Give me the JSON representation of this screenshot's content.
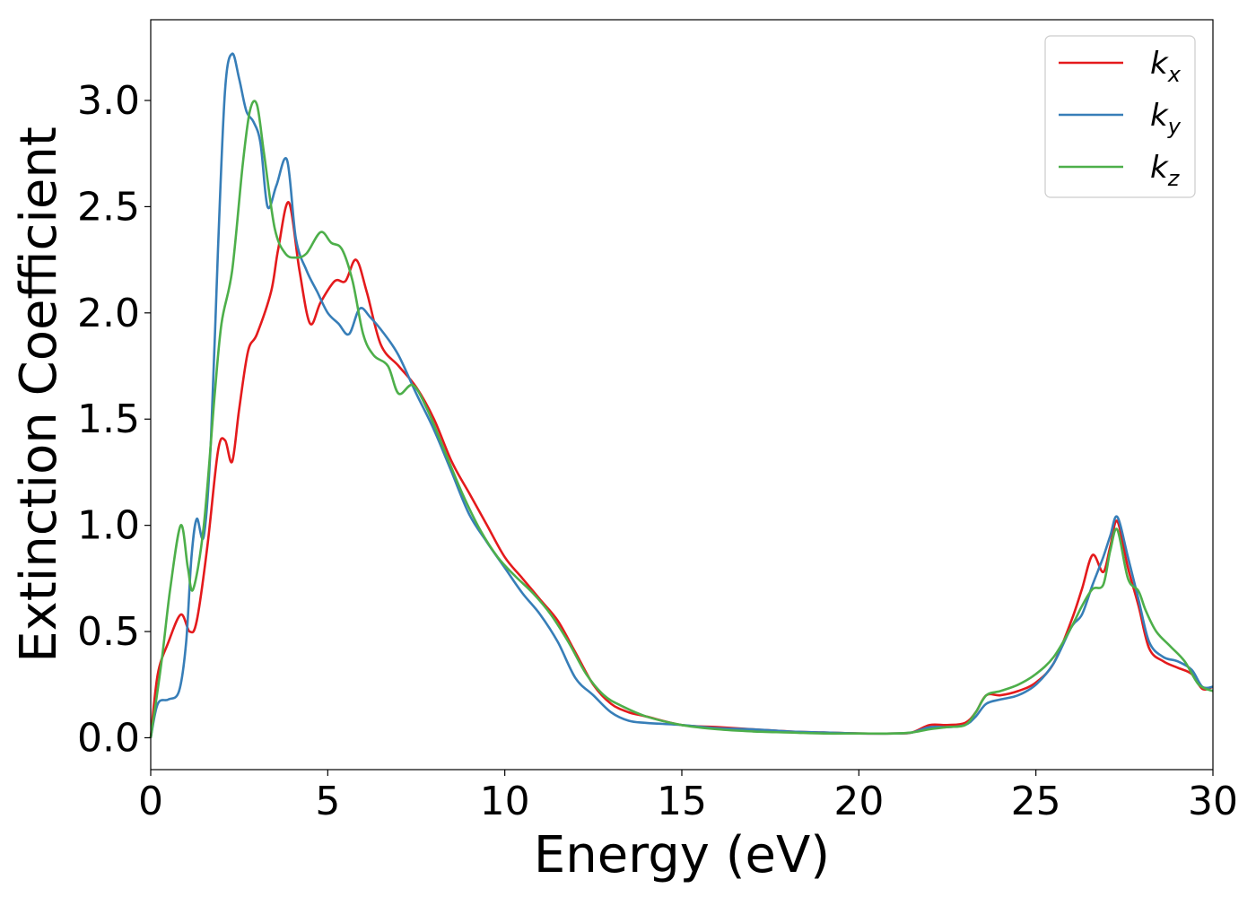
{
  "chart_data": {
    "type": "line",
    "title": "",
    "xlabel": "Energy (eV)",
    "ylabel": "Extinction Coefficient",
    "xlim": [
      0,
      30
    ],
    "ylim": [
      -0.15,
      3.38
    ],
    "xticks": [
      0,
      5,
      10,
      15,
      20,
      25,
      30
    ],
    "xtick_labels": [
      "0",
      "5",
      "10",
      "15",
      "20",
      "25",
      "30"
    ],
    "yticks": [
      0.0,
      0.5,
      1.0,
      1.5,
      2.0,
      2.5,
      3.0
    ],
    "ytick_labels": [
      "0.0",
      "0.5",
      "1.0",
      "1.5",
      "2.0",
      "2.5",
      "3.0"
    ],
    "grid": false,
    "legend_position": "top-right",
    "series": [
      {
        "name": "k_x",
        "label_base": "k",
        "label_sub": "x",
        "color": "#e41a1c",
        "x": [
          0,
          0.2,
          0.5,
          0.85,
          1.1,
          1.3,
          1.6,
          1.9,
          2.1,
          2.3,
          2.5,
          2.75,
          3.0,
          3.4,
          3.6,
          3.9,
          4.2,
          4.5,
          4.8,
          5.2,
          5.5,
          5.8,
          6.1,
          6.5,
          7.0,
          7.5,
          8.0,
          8.5,
          9.0,
          9.5,
          10.0,
          10.5,
          11.0,
          11.5,
          12.0,
          12.5,
          13.0,
          13.5,
          14.0,
          15.0,
          16.0,
          17.0,
          18.0,
          19.0,
          20.0,
          21.0,
          21.5,
          22.0,
          22.5,
          23.0,
          23.3,
          23.6,
          24.0,
          24.5,
          25.0,
          25.5,
          26.0,
          26.3,
          26.6,
          26.9,
          27.1,
          27.3,
          27.6,
          27.9,
          28.2,
          28.6,
          29.0,
          29.4,
          29.7,
          30.0
        ],
        "y": [
          0.0,
          0.3,
          0.45,
          0.58,
          0.5,
          0.55,
          0.9,
          1.35,
          1.4,
          1.3,
          1.55,
          1.82,
          1.9,
          2.1,
          2.3,
          2.52,
          2.2,
          1.95,
          2.05,
          2.15,
          2.15,
          2.25,
          2.1,
          1.85,
          1.75,
          1.65,
          1.5,
          1.3,
          1.15,
          1.0,
          0.85,
          0.75,
          0.65,
          0.55,
          0.4,
          0.25,
          0.16,
          0.12,
          0.1,
          0.06,
          0.05,
          0.04,
          0.03,
          0.025,
          0.02,
          0.02,
          0.025,
          0.06,
          0.06,
          0.07,
          0.12,
          0.2,
          0.2,
          0.22,
          0.26,
          0.35,
          0.55,
          0.7,
          0.86,
          0.78,
          0.9,
          1.02,
          0.8,
          0.62,
          0.42,
          0.36,
          0.33,
          0.3,
          0.23,
          0.24
        ]
      },
      {
        "name": "k_y",
        "label_base": "k",
        "label_sub": "y",
        "color": "#377eb8",
        "x": [
          0,
          0.2,
          0.5,
          0.8,
          1.0,
          1.15,
          1.3,
          1.5,
          1.7,
          1.9,
          2.1,
          2.3,
          2.5,
          2.7,
          2.9,
          3.1,
          3.3,
          3.55,
          3.85,
          4.1,
          4.4,
          4.7,
          5.0,
          5.3,
          5.6,
          5.9,
          6.2,
          6.6,
          7.0,
          7.5,
          8.0,
          8.5,
          9.0,
          9.5,
          10.0,
          10.5,
          11.0,
          11.5,
          12.0,
          12.5,
          13.0,
          13.5,
          14.0,
          15.0,
          16.0,
          17.0,
          18.0,
          19.0,
          20.0,
          21.0,
          21.5,
          22.0,
          22.5,
          23.0,
          23.3,
          23.6,
          24.0,
          24.5,
          25.0,
          25.5,
          26.0,
          26.3,
          26.6,
          26.9,
          27.1,
          27.3,
          27.6,
          27.9,
          28.2,
          28.6,
          29.0,
          29.4,
          29.7,
          30.0
        ],
        "y": [
          0.0,
          0.16,
          0.18,
          0.22,
          0.45,
          0.85,
          1.03,
          0.95,
          1.4,
          2.3,
          3.05,
          3.22,
          3.1,
          2.95,
          2.9,
          2.8,
          2.5,
          2.6,
          2.72,
          2.35,
          2.2,
          2.1,
          2.0,
          1.95,
          1.9,
          2.02,
          1.98,
          1.9,
          1.8,
          1.62,
          1.45,
          1.25,
          1.05,
          0.92,
          0.8,
          0.68,
          0.58,
          0.45,
          0.28,
          0.2,
          0.12,
          0.08,
          0.07,
          0.06,
          0.045,
          0.04,
          0.03,
          0.025,
          0.02,
          0.02,
          0.025,
          0.05,
          0.05,
          0.06,
          0.1,
          0.16,
          0.18,
          0.2,
          0.25,
          0.35,
          0.52,
          0.58,
          0.72,
          0.85,
          0.95,
          1.04,
          0.85,
          0.65,
          0.45,
          0.38,
          0.36,
          0.32,
          0.24,
          0.24
        ]
      },
      {
        "name": "k_z",
        "label_base": "k",
        "label_sub": "z",
        "color": "#4daf4a",
        "x": [
          0,
          0.3,
          0.55,
          0.85,
          1.05,
          1.2,
          1.5,
          1.8,
          2.0,
          2.3,
          2.6,
          2.8,
          3.0,
          3.2,
          3.5,
          3.8,
          4.1,
          4.4,
          4.8,
          5.1,
          5.4,
          5.7,
          6.0,
          6.3,
          6.7,
          7.0,
          7.4,
          7.8,
          8.3,
          8.8,
          9.3,
          9.8,
          10.3,
          10.8,
          11.3,
          11.8,
          12.3,
          12.8,
          13.3,
          14.0,
          15.0,
          16.0,
          17.0,
          18.0,
          19.0,
          20.0,
          21.0,
          21.5,
          22.0,
          22.5,
          23.0,
          23.3,
          23.6,
          24.0,
          24.5,
          25.0,
          25.5,
          26.0,
          26.3,
          26.6,
          26.9,
          27.1,
          27.3,
          27.6,
          27.9,
          28.1,
          28.4,
          28.8,
          29.2,
          29.6,
          30.0
        ],
        "y": [
          0.0,
          0.35,
          0.7,
          1.0,
          0.8,
          0.7,
          1.0,
          1.6,
          1.95,
          2.2,
          2.7,
          2.95,
          2.98,
          2.75,
          2.4,
          2.28,
          2.26,
          2.28,
          2.38,
          2.33,
          2.3,
          2.15,
          1.9,
          1.8,
          1.75,
          1.62,
          1.66,
          1.55,
          1.35,
          1.15,
          0.98,
          0.85,
          0.76,
          0.68,
          0.58,
          0.45,
          0.3,
          0.2,
          0.15,
          0.1,
          0.06,
          0.04,
          0.03,
          0.025,
          0.02,
          0.02,
          0.02,
          0.025,
          0.04,
          0.05,
          0.06,
          0.12,
          0.2,
          0.22,
          0.25,
          0.3,
          0.38,
          0.52,
          0.62,
          0.7,
          0.72,
          0.88,
          0.98,
          0.75,
          0.69,
          0.6,
          0.5,
          0.43,
          0.36,
          0.25,
          0.22
        ]
      }
    ]
  }
}
